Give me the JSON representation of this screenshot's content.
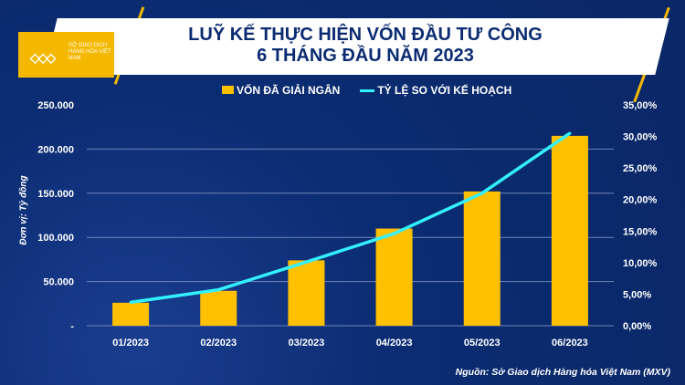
{
  "logo": {
    "text": "SỞ GIAO DỊCH HÀNG HÓA VIỆT NAM"
  },
  "chart_data": {
    "type": "bar",
    "title": "LUỸ KẾ THỰC HIỆN VỐN ĐẦU TƯ CÔNG 6 THÁNG ĐẦU NĂM 2023",
    "title_lines": [
      "LUỸ KẾ THỰC HIỆN VỐN ĐẦU TƯ CÔNG",
      "6 THÁNG ĐẦU NĂM 2023"
    ],
    "categories": [
      "01/2023",
      "02/2023",
      "03/2023",
      "04/2023",
      "05/2023",
      "06/2023"
    ],
    "series": [
      {
        "name": "VỐN ĐÃ GIẢI NGÂN",
        "type": "bar",
        "axis": "left",
        "color": "#ffc000",
        "values": [
          26000,
          39500,
          74000,
          110000,
          152000,
          215000
        ]
      },
      {
        "name": "TỶ LỆ SO VỚI KẾ HOẠCH",
        "type": "line",
        "axis": "right",
        "color": "#33f0ff",
        "values": [
          3.7,
          5.7,
          10.1,
          14.6,
          21.0,
          30.5
        ]
      }
    ],
    "ylabel": "Đơn vị: Tỷ đồng",
    "ylim": [
      0,
      250000
    ],
    "y_ticks": [
      "-",
      "50.000",
      "100.000",
      "150.000",
      "200.000",
      "250.000"
    ],
    "y2lim": [
      0,
      35
    ],
    "y2_ticks": [
      "0,00%",
      "5,00%",
      "10,00%",
      "15,00%",
      "20,00%",
      "25,00%",
      "30,00%",
      "35,00%"
    ],
    "grid": true,
    "legend": "top",
    "source": "Nguồn: Sở Giao dịch Hàng hóa Việt Nam (MXV)"
  }
}
